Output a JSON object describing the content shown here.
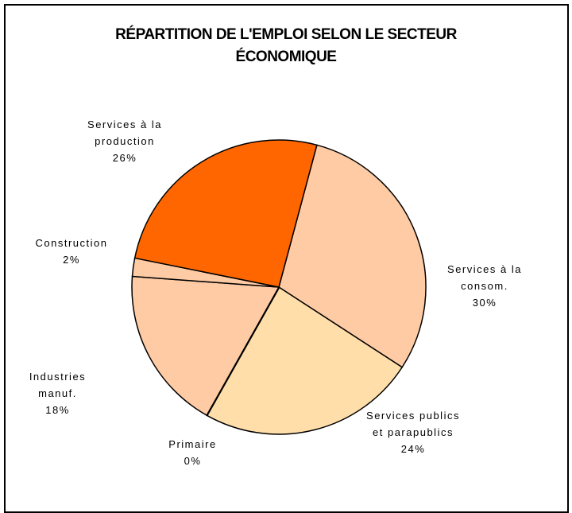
{
  "chart_data": {
    "type": "pie",
    "title": "RÉPARTITION DE L'EMPLOI SELON LE SECTEUR ÉCONOMIQUE",
    "categories": [
      "Services à la consom.",
      "Services publics et parapublics",
      "Primaire",
      "Industries manuf.",
      "Construction",
      "Services à la production"
    ],
    "values": [
      30,
      24,
      0,
      18,
      2,
      26
    ],
    "value_labels": [
      "30%",
      "24%",
      "0%",
      "18%",
      "2%",
      "26%"
    ],
    "colors": [
      "#FFCBA5",
      "#FFDEAA",
      "#FFCBA5",
      "#FFCBA5",
      "#FFCBA5",
      "#FF6600"
    ]
  }
}
